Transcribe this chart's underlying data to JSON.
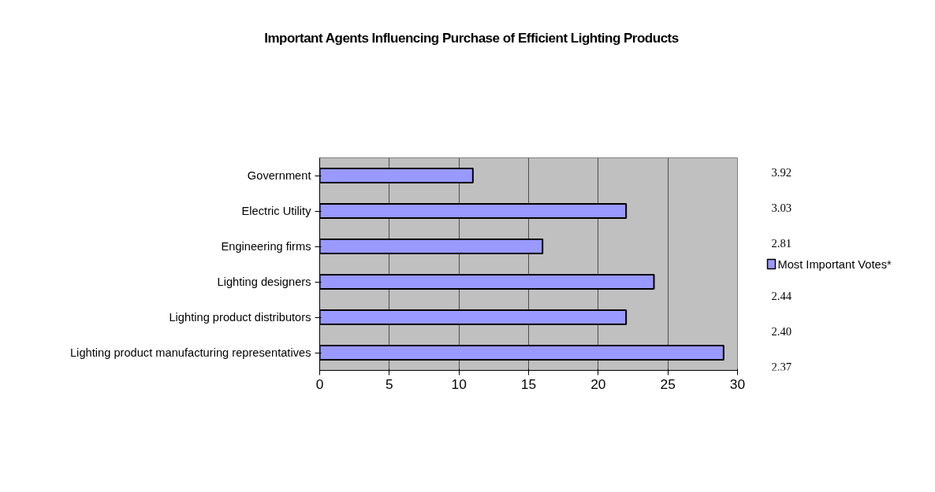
{
  "chart_data": {
    "type": "bar",
    "orientation": "horizontal",
    "title": "Important Agents Influencing Purchase of Efficient Lighting Products",
    "categories": [
      "Government",
      "Electric Utility",
      "Engineering firms",
      "Lighting designers",
      "Lighting product distributors",
      "Lighting product manufacturing representatives"
    ],
    "series": [
      {
        "name": "Most Important Votes*",
        "color": "#9999ff",
        "values": [
          11,
          22,
          16,
          24,
          22,
          29
        ]
      }
    ],
    "xlim": [
      0,
      30
    ],
    "xticks": [
      0,
      5,
      10,
      15,
      20,
      25,
      30
    ],
    "grid": "x",
    "legend": "right",
    "annotations": [
      "3.92",
      "3.03",
      "2.81",
      "2.44",
      "2.40",
      "2.37"
    ]
  }
}
